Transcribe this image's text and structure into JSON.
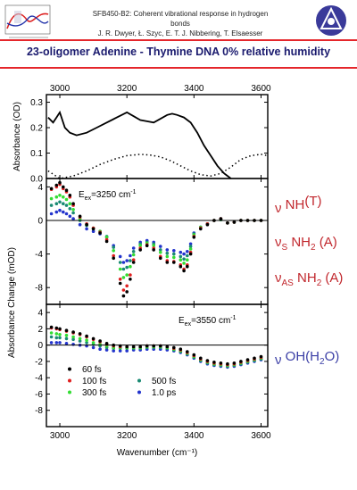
{
  "header": {
    "line1": "SFB450-B2: Coherent vibrational response in hydrogen bonds",
    "line2": "J. R. Dwyer, Ł. Szyc, E. T. J. Nibbering, T. Elsaesser",
    "title": "23-oligomer Adenine - Thymine DNA   0% relative humidity"
  },
  "annotations": [
    {
      "sym": "ν",
      "sub": "",
      "mid": " NH",
      "sub2": "",
      "tail": "(T)",
      "color": "#c1272d"
    },
    {
      "sym": "ν",
      "sub": "S",
      "mid": " NH",
      "sub2": "2",
      "tail": " (A)",
      "color": "#c1272d"
    },
    {
      "sym": "ν",
      "sub": "AS",
      "mid": " NH",
      "sub2": "2",
      "tail": " (A)",
      "color": "#c1272d"
    },
    {
      "sym": "ν",
      "sub": "",
      "mid": " OH(H",
      "sub2": "2",
      "tail": "O)",
      "color": "#3b3fa6"
    }
  ],
  "chart_data": {
    "type": "line",
    "xlabel": "Wavenumber (cm⁻¹)",
    "xlim": [
      2960,
      3620
    ],
    "xticks": [
      3000,
      3200,
      3400,
      3600
    ],
    "top": {
      "ylabel": "Absorbance (OD)",
      "ylim": [
        0.0,
        0.33
      ],
      "yticks": [
        0.0,
        0.1,
        0.2,
        0.3
      ],
      "ytick_labels": [
        "0.0",
        "0.1",
        "0.2",
        "0.3"
      ],
      "series": [
        {
          "style": "solid",
          "x": [
            2965,
            2980,
            2990,
            3000,
            3015,
            3030,
            3050,
            3080,
            3110,
            3140,
            3170,
            3200,
            3220,
            3240,
            3260,
            3280,
            3300,
            3320,
            3335,
            3350,
            3370,
            3390,
            3410,
            3430,
            3450,
            3470,
            3490,
            3510
          ],
          "y": [
            0.24,
            0.22,
            0.24,
            0.26,
            0.2,
            0.18,
            0.17,
            0.18,
            0.2,
            0.22,
            0.24,
            0.26,
            0.245,
            0.23,
            0.225,
            0.22,
            0.235,
            0.25,
            0.255,
            0.25,
            0.24,
            0.22,
            0.18,
            0.13,
            0.09,
            0.05,
            0.02,
            0.0
          ]
        },
        {
          "style": "dotted",
          "x": [
            2965,
            3000,
            3040,
            3080,
            3120,
            3160,
            3200,
            3240,
            3270,
            3300,
            3330,
            3360,
            3390,
            3420,
            3450,
            3480,
            3510,
            3540,
            3570,
            3600,
            3620
          ],
          "y": [
            0.03,
            0.0,
            0.01,
            0.03,
            0.055,
            0.075,
            0.09,
            0.095,
            0.092,
            0.085,
            0.07,
            0.05,
            0.03,
            0.015,
            0.01,
            0.02,
            0.045,
            0.075,
            0.09,
            0.095,
            0.09
          ]
        }
      ]
    },
    "middle": {
      "annotation": "E_ex=3250 cm-1",
      "ylim": [
        -10,
        5
      ],
      "yticks": [
        4,
        0,
        -4,
        -8
      ],
      "ytick_labels": [
        "4",
        "0",
        "-4",
        "-8"
      ],
      "x": [
        2975,
        2990,
        3000,
        3010,
        3020,
        3030,
        3040,
        3060,
        3080,
        3100,
        3120,
        3140,
        3160,
        3180,
        3190,
        3200,
        3210,
        3220,
        3240,
        3260,
        3280,
        3300,
        3320,
        3340,
        3360,
        3370,
        3380,
        3390,
        3400,
        3420,
        3440,
        3460,
        3480,
        3500,
        3520,
        3540,
        3560,
        3580,
        3600
      ],
      "series": [
        {
          "name": "60 fs",
          "color": "#000000",
          "y": [
            3.8,
            4.2,
            4.5,
            4.0,
            3.6,
            3.0,
            2.0,
            0.5,
            -0.5,
            -1.0,
            -1.5,
            -2.5,
            -4.5,
            -7.5,
            -9.0,
            -8.5,
            -7.0,
            -5.0,
            -3.5,
            -3.0,
            -3.5,
            -4.5,
            -5.0,
            -5.0,
            -5.5,
            -6.0,
            -5.5,
            -4.0,
            -2.0,
            -1.0,
            -0.5,
            0.0,
            0.2,
            -0.3,
            -0.2,
            0.0,
            0.0,
            0.0,
            0.0
          ]
        },
        {
          "name": "100 fs",
          "color": "#e02020",
          "y": [
            3.7,
            4.0,
            4.3,
            3.8,
            3.4,
            2.8,
            1.8,
            0.4,
            -0.4,
            -0.9,
            -1.4,
            -2.3,
            -4.2,
            -7.0,
            -8.3,
            -7.8,
            -6.5,
            -4.7,
            -3.3,
            -2.9,
            -3.3,
            -4.3,
            -4.8,
            -4.9,
            -5.3,
            -5.8,
            -5.3,
            -3.8,
            -1.9,
            -0.9,
            -0.4,
            0.0,
            0.2,
            -0.3,
            -0.2,
            0.0,
            0.0,
            0.0,
            0.0
          ]
        },
        {
          "name": "300 fs",
          "color": "#33dd33",
          "y": [
            2.6,
            2.8,
            3.0,
            2.8,
            2.5,
            2.0,
            1.3,
            0.2,
            -0.5,
            -0.9,
            -1.3,
            -2.0,
            -3.6,
            -5.8,
            -6.8,
            -6.5,
            -5.5,
            -4.1,
            -3.0,
            -2.7,
            -3.0,
            -3.8,
            -4.3,
            -4.4,
            -4.7,
            -5.1,
            -4.7,
            -3.4,
            -1.7,
            -0.8,
            -0.4,
            0.0,
            0.1,
            -0.3,
            -0.2,
            0.0,
            0.0,
            0.0,
            0.0
          ]
        },
        {
          "name": "500 fs",
          "color": "#1a8a73",
          "y": [
            1.8,
            2.0,
            2.2,
            2.0,
            1.8,
            1.4,
            0.9,
            0.0,
            -0.6,
            -1.0,
            -1.3,
            -1.9,
            -3.2,
            -5.0,
            -5.8,
            -5.6,
            -4.8,
            -3.7,
            -2.8,
            -2.6,
            -2.8,
            -3.5,
            -3.9,
            -4.0,
            -4.3,
            -4.6,
            -4.2,
            -3.1,
            -1.6,
            -0.8,
            -0.4,
            0.0,
            0.1,
            -0.3,
            -0.2,
            0.0,
            0.0,
            0.0,
            0.0
          ]
        },
        {
          "name": "1.0 ps",
          "color": "#2233cc",
          "y": [
            0.8,
            1.0,
            1.2,
            1.0,
            0.8,
            0.5,
            0.2,
            -0.5,
            -1.0,
            -1.3,
            -1.6,
            -2.0,
            -3.0,
            -4.3,
            -5.0,
            -4.8,
            -4.2,
            -3.3,
            -2.6,
            -2.4,
            -2.6,
            -3.1,
            -3.5,
            -3.6,
            -3.8,
            -4.0,
            -3.7,
            -2.8,
            -1.5,
            -0.8,
            -0.4,
            0.0,
            0.1,
            -0.3,
            -0.2,
            0.0,
            0.0,
            0.0,
            0.0
          ]
        }
      ]
    },
    "bottom": {
      "annotation": "E_ex=3550 cm-1",
      "ylim": [
        -10,
        5
      ],
      "yticks": [
        4,
        2,
        0,
        -2,
        -4,
        -6,
        -8
      ],
      "ytick_labels": [
        "4",
        "2",
        "0",
        "-2",
        "-4",
        "-6",
        "-8"
      ],
      "x": [
        2975,
        2990,
        3000,
        3020,
        3040,
        3060,
        3080,
        3100,
        3120,
        3140,
        3160,
        3180,
        3200,
        3220,
        3240,
        3260,
        3280,
        3300,
        3320,
        3340,
        3360,
        3380,
        3400,
        3420,
        3440,
        3460,
        3480,
        3500,
        3520,
        3540,
        3560,
        3580,
        3600
      ],
      "series": [
        {
          "name": "60 fs",
          "color": "#000000",
          "y": [
            2.2,
            2.1,
            2.0,
            1.8,
            1.6,
            1.4,
            1.1,
            0.8,
            0.5,
            0.2,
            0.0,
            -0.1,
            -0.2,
            -0.2,
            -0.2,
            -0.1,
            -0.1,
            -0.1,
            -0.2,
            -0.3,
            -0.5,
            -0.8,
            -1.2,
            -1.6,
            -1.9,
            -2.1,
            -2.2,
            -2.3,
            -2.2,
            -2.0,
            -1.8,
            -1.6,
            -1.4
          ]
        },
        {
          "name": "100 fs",
          "color": "#e02020",
          "y": [
            2.1,
            2.0,
            1.9,
            1.7,
            1.5,
            1.3,
            1.0,
            0.7,
            0.4,
            0.1,
            -0.1,
            -0.2,
            -0.2,
            -0.2,
            -0.2,
            -0.1,
            -0.1,
            -0.1,
            -0.2,
            -0.4,
            -0.6,
            -0.9,
            -1.3,
            -1.7,
            -2.0,
            -2.2,
            -2.3,
            -2.4,
            -2.3,
            -2.1,
            -1.9,
            -1.7,
            -1.5
          ]
        },
        {
          "name": "300 fs",
          "color": "#33dd33",
          "y": [
            1.5,
            1.4,
            1.3,
            1.2,
            1.0,
            0.8,
            0.6,
            0.3,
            0.1,
            -0.1,
            -0.3,
            -0.3,
            -0.3,
            -0.3,
            -0.3,
            -0.2,
            -0.2,
            -0.2,
            -0.3,
            -0.5,
            -0.7,
            -1.0,
            -1.4,
            -1.8,
            -2.1,
            -2.3,
            -2.4,
            -2.5,
            -2.4,
            -2.2,
            -2.0,
            -1.8,
            -1.6
          ]
        },
        {
          "name": "500 fs",
          "color": "#1a8a73",
          "y": [
            1.0,
            0.9,
            0.9,
            0.8,
            0.7,
            0.5,
            0.3,
            0.1,
            -0.1,
            -0.3,
            -0.4,
            -0.4,
            -0.4,
            -0.4,
            -0.4,
            -0.3,
            -0.3,
            -0.3,
            -0.4,
            -0.6,
            -0.8,
            -1.1,
            -1.5,
            -1.9,
            -2.2,
            -2.4,
            -2.5,
            -2.6,
            -2.5,
            -2.3,
            -2.1,
            -1.9,
            -1.7
          ]
        },
        {
          "name": "1.0 ps",
          "color": "#2233cc",
          "y": [
            0.3,
            0.3,
            0.3,
            0.2,
            0.1,
            0.0,
            -0.1,
            -0.3,
            -0.5,
            -0.6,
            -0.7,
            -0.7,
            -0.7,
            -0.6,
            -0.6,
            -0.5,
            -0.5,
            -0.5,
            -0.6,
            -0.7,
            -0.9,
            -1.2,
            -1.6,
            -2.0,
            -2.3,
            -2.5,
            -2.6,
            -2.7,
            -2.6,
            -2.4,
            -2.2,
            -2.0,
            -1.8
          ]
        }
      ]
    },
    "shared_ylabel": "Absorbance Change (mOD)",
    "legend": {
      "placement": "lower-left of bottom panel",
      "entries": [
        "60 fs",
        "100 fs",
        "300 fs",
        "500 fs",
        "1.0 ps"
      ]
    }
  }
}
